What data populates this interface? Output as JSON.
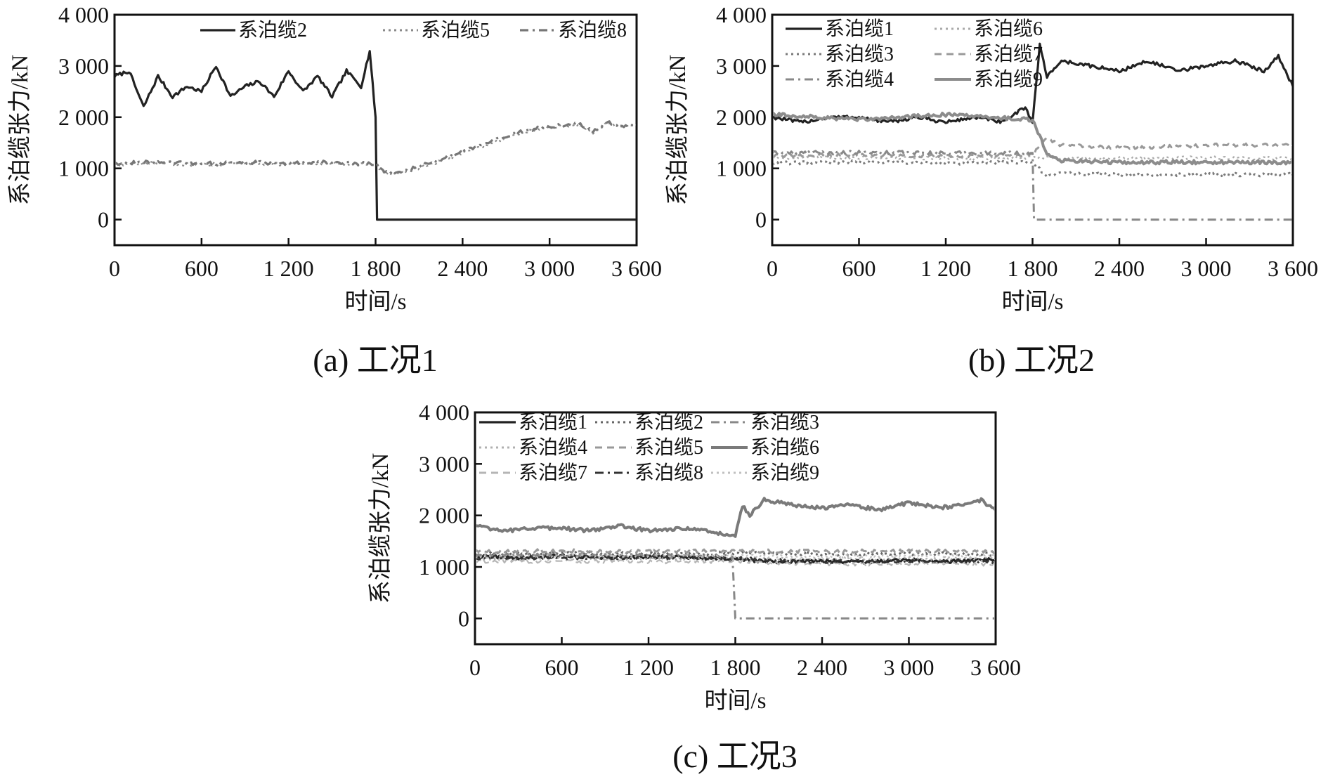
{
  "chart_data": [
    {
      "type": "line",
      "caption": "(a) 工况1",
      "xlabel": "时间/s",
      "ylabel": "系泊缆张力/kN",
      "xlim": [
        0,
        3600
      ],
      "ylim": [
        -500,
        4000
      ],
      "xticks": [
        0,
        600,
        1200,
        1800,
        2400,
        3000,
        3600
      ],
      "xtick_labels": [
        "0",
        "600",
        "1 200",
        "1 800",
        "2 400",
        "3 000",
        "3 600"
      ],
      "yticks": [
        0,
        1000,
        2000,
        3000,
        4000
      ],
      "ytick_labels": [
        "0",
        "1 000",
        "2 000",
        "3 000",
        "4 000"
      ],
      "legend_position": "top-right",
      "legend_columns": 3,
      "series": [
        {
          "name": "系泊缆2",
          "color": "#222222",
          "dash": "solid",
          "width": 3.2,
          "x": [
            0,
            100,
            200,
            300,
            400,
            500,
            600,
            700,
            800,
            900,
            1000,
            1100,
            1200,
            1300,
            1400,
            1500,
            1600,
            1700,
            1760,
            1790,
            1800,
            1810,
            2400,
            3000,
            3600
          ],
          "y": [
            2800,
            2900,
            2200,
            2800,
            2400,
            2600,
            2500,
            3000,
            2400,
            2600,
            2700,
            2400,
            2900,
            2500,
            2800,
            2400,
            2900,
            2600,
            3300,
            2300,
            2000,
            0,
            0,
            0,
            0
          ]
        },
        {
          "name": "系泊缆5",
          "color": "#8a8a8a",
          "dash": "dot",
          "width": 2.2,
          "x": [
            0,
            300,
            600,
            900,
            1200,
            1500,
            1800,
            1850,
            1900,
            2000,
            2200,
            2400,
            2600,
            2800,
            3000,
            3200,
            3300,
            3400,
            3500,
            3600
          ],
          "y": [
            1080,
            1100,
            1070,
            1100,
            1080,
            1100,
            1070,
            930,
            880,
            930,
            1100,
            1300,
            1500,
            1700,
            1800,
            1850,
            1700,
            1880,
            1800,
            1850
          ]
        },
        {
          "name": "系泊缆8",
          "color": "#777777",
          "dash": "dashdot",
          "width": 3.2,
          "x": [
            0,
            300,
            600,
            900,
            1200,
            1500,
            1800,
            1850,
            1900,
            2000,
            2200,
            2400,
            2600,
            2800,
            3000,
            3200,
            3300,
            3400,
            3500,
            3600
          ],
          "y": [
            1100,
            1120,
            1090,
            1120,
            1100,
            1120,
            1090,
            950,
            900,
            950,
            1120,
            1320,
            1520,
            1720,
            1820,
            1870,
            1720,
            1900,
            1820,
            1870
          ]
        }
      ]
    },
    {
      "type": "line",
      "caption": "(b) 工况2",
      "xlabel": "时间/s",
      "ylabel": "系泊缆张力/kN",
      "xlim": [
        0,
        3600
      ],
      "ylim": [
        -500,
        4000
      ],
      "xticks": [
        0,
        600,
        1200,
        1800,
        2400,
        3000,
        3600
      ],
      "xtick_labels": [
        "0",
        "600",
        "1 200",
        "1 800",
        "2 400",
        "3 000",
        "3 600"
      ],
      "yticks": [
        0,
        1000,
        2000,
        3000,
        4000
      ],
      "ytick_labels": [
        "0",
        "1 000",
        "2 000",
        "3 000",
        "4 000"
      ],
      "legend_position": "top-left",
      "legend_columns": 2,
      "series": [
        {
          "name": "系泊缆1",
          "color": "#222222",
          "dash": "solid",
          "width": 3.2,
          "x": [
            0,
            200,
            400,
            600,
            800,
            1000,
            1200,
            1400,
            1600,
            1750,
            1800,
            1850,
            1900,
            2000,
            2200,
            2400,
            2600,
            2800,
            3000,
            3200,
            3400,
            3500,
            3600
          ],
          "y": [
            2000,
            1900,
            2000,
            2000,
            1900,
            2000,
            1900,
            2000,
            1900,
            2200,
            1900,
            3400,
            2800,
            3100,
            3000,
            2900,
            3100,
            2900,
            3000,
            3100,
            2900,
            3200,
            2600
          ]
        },
        {
          "name": "系泊缆6",
          "color": "#aaaaaa",
          "dash": "dot",
          "width": 2.2,
          "x": [
            0,
            600,
            1200,
            1800,
            2400,
            3000,
            3600
          ],
          "y": [
            1200,
            1210,
            1200,
            1210,
            1200,
            1210,
            1200
          ]
        },
        {
          "name": "系泊缆3",
          "color": "#7a7a7a",
          "dash": "dot",
          "width": 3.0,
          "x": [
            0,
            600,
            1200,
            1800,
            1900,
            2000,
            2400,
            3000,
            3600
          ],
          "y": [
            1100,
            1120,
            1100,
            1120,
            850,
            900,
            880,
            880,
            880
          ]
        },
        {
          "name": "系泊缆7",
          "color": "#999999",
          "dash": "dash",
          "width": 3.0,
          "x": [
            0,
            600,
            1200,
            1800,
            1900,
            2000,
            2400,
            3000,
            3600
          ],
          "y": [
            1250,
            1260,
            1250,
            1260,
            1600,
            1450,
            1400,
            1450,
            1450
          ]
        },
        {
          "name": "系泊缆4",
          "color": "#888888",
          "dash": "dashdot",
          "width": 3.0,
          "x": [
            0,
            600,
            1200,
            1800,
            1810,
            2400,
            3000,
            3600
          ],
          "y": [
            1300,
            1310,
            1300,
            1300,
            0,
            0,
            0,
            0
          ]
        },
        {
          "name": "系泊缆9",
          "color": "#8c8c8c",
          "dash": "solid",
          "width": 4.0,
          "x": [
            0,
            600,
            1200,
            1800,
            1900,
            2000,
            2400,
            3000,
            3600
          ],
          "y": [
            2050,
            1950,
            2050,
            1950,
            1300,
            1150,
            1120,
            1120,
            1120
          ]
        }
      ]
    },
    {
      "type": "line",
      "caption": "(c) 工况3",
      "xlabel": "时间/s",
      "ylabel": "系泊缆张力/kN",
      "xlim": [
        0,
        3600
      ],
      "ylim": [
        -500,
        4000
      ],
      "xticks": [
        0,
        600,
        1200,
        1800,
        2400,
        3000,
        3600
      ],
      "xtick_labels": [
        "0",
        "600",
        "1 200",
        "1 800",
        "2 400",
        "3 000",
        "3 600"
      ],
      "yticks": [
        0,
        1000,
        2000,
        3000,
        4000
      ],
      "ytick_labels": [
        "0",
        "1 000",
        "2 000",
        "3 000",
        "4 000"
      ],
      "legend_position": "top-left",
      "legend_columns": 3,
      "series": [
        {
          "name": "系泊缆1",
          "color": "#222222",
          "dash": "solid",
          "width": 3.2,
          "x": [
            0,
            300,
            600,
            900,
            1200,
            1500,
            1800,
            2100,
            2400,
            2700,
            3000,
            3300,
            3600
          ],
          "y": [
            1200,
            1180,
            1210,
            1190,
            1200,
            1180,
            1150,
            1100,
            1120,
            1100,
            1130,
            1110,
            1150
          ]
        },
        {
          "name": "系泊缆2",
          "color": "#666666",
          "dash": "dot",
          "width": 3.0,
          "x": [
            0,
            600,
            1200,
            1800,
            2400,
            3000,
            3600
          ],
          "y": [
            1250,
            1260,
            1250,
            1270,
            1250,
            1260,
            1250
          ]
        },
        {
          "name": "系泊缆3",
          "color": "#888888",
          "dash": "dashdot",
          "width": 3.0,
          "x": [
            0,
            600,
            1200,
            1780,
            1800,
            2400,
            3000,
            3600
          ],
          "y": [
            1220,
            1230,
            1220,
            1200,
            0,
            0,
            0,
            0
          ]
        },
        {
          "name": "系泊缆4",
          "color": "#b0b0b0",
          "dash": "dot",
          "width": 2.2,
          "x": [
            0,
            600,
            1200,
            1800,
            2400,
            3000,
            3600
          ],
          "y": [
            1150,
            1160,
            1150,
            1160,
            1150,
            1160,
            1150
          ]
        },
        {
          "name": "系泊缆5",
          "color": "#999999",
          "dash": "dash",
          "width": 3.0,
          "x": [
            0,
            600,
            1200,
            1800,
            2400,
            3000,
            3600
          ],
          "y": [
            1300,
            1310,
            1300,
            1310,
            1300,
            1310,
            1300
          ]
        },
        {
          "name": "系泊缆6",
          "color": "#7a7a7a",
          "dash": "solid",
          "width": 4.0,
          "x": [
            0,
            200,
            400,
            600,
            800,
            1000,
            1200,
            1400,
            1600,
            1800,
            1850,
            1900,
            2000,
            2200,
            2400,
            2600,
            2800,
            3000,
            3200,
            3400,
            3500,
            3600
          ],
          "y": [
            1800,
            1700,
            1750,
            1750,
            1700,
            1800,
            1700,
            1750,
            1700,
            1600,
            2200,
            2000,
            2300,
            2200,
            2150,
            2200,
            2100,
            2250,
            2150,
            2200,
            2300,
            2100
          ]
        },
        {
          "name": "系泊缆7",
          "color": "#b5b5b5",
          "dash": "dash",
          "width": 2.2,
          "x": [
            0,
            600,
            1200,
            1800,
            2400,
            3000,
            3600
          ],
          "y": [
            1100,
            1110,
            1100,
            1110,
            1050,
            1060,
            1050
          ]
        },
        {
          "name": "系泊缆8",
          "color": "#333333",
          "dash": "dashdot",
          "width": 2.6,
          "x": [
            0,
            600,
            1200,
            1800,
            2400,
            3000,
            3600
          ],
          "y": [
            1180,
            1170,
            1190,
            1170,
            1100,
            1120,
            1100
          ]
        },
        {
          "name": "系泊缆9",
          "color": "#c0c0c0",
          "dash": "dot",
          "width": 2.2,
          "x": [
            0,
            600,
            1200,
            1800,
            2400,
            3000,
            3600
          ],
          "y": [
            1200,
            1210,
            1200,
            1210,
            1200,
            1210,
            1200
          ]
        }
      ]
    }
  ]
}
